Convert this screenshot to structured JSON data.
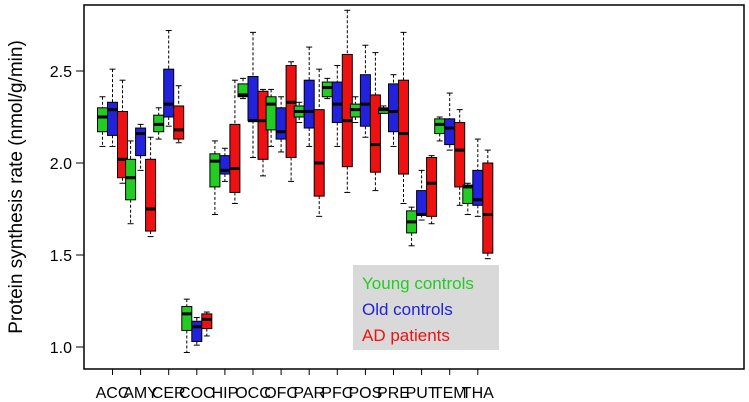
{
  "chart_data": {
    "type": "box",
    "ylabel": "Protein synthesis rate (nmol/g/min)",
    "ylim": [
      0.9,
      2.9
    ],
    "yticks": [
      1.0,
      1.5,
      2.0,
      2.5
    ],
    "grid": false,
    "legend_position": "bottom-center",
    "categories": [
      "ACC",
      "AMY",
      "CER",
      "COC",
      "HIP",
      "OCC",
      "OFC",
      "PAR",
      "PFC",
      "POS",
      "PRE",
      "PUT",
      "TEM",
      "THA"
    ],
    "colors": {
      "young": "#22cc22",
      "old": "#2222dd",
      "ad": "#ee1111"
    },
    "series": [
      {
        "name": "Young controls",
        "key": "young",
        "boxes": [
          {
            "min": 2.09,
            "q1": 2.17,
            "median": 2.25,
            "q3": 2.3,
            "max": 2.36
          },
          {
            "min": 1.67,
            "q1": 1.8,
            "median": 1.92,
            "q3": 2.02,
            "max": 2.12
          },
          {
            "min": 2.13,
            "q1": 2.17,
            "median": 2.21,
            "q3": 2.26,
            "max": 2.3
          },
          {
            "min": 0.97,
            "q1": 1.09,
            "median": 1.18,
            "q3": 1.22,
            "max": 1.26
          },
          {
            "min": 1.72,
            "q1": 1.87,
            "median": 2.01,
            "q3": 2.05,
            "max": 2.12
          },
          {
            "min": 2.35,
            "q1": 2.36,
            "median": 2.37,
            "q3": 2.43,
            "max": 2.46
          },
          {
            "min": 2.09,
            "q1": 2.18,
            "median": 2.32,
            "q3": 2.36,
            "max": 2.4
          },
          {
            "min": 2.22,
            "q1": 2.25,
            "median": 2.28,
            "q3": 2.31,
            "max": 2.33
          },
          {
            "min": 2.35,
            "q1": 2.36,
            "median": 2.41,
            "q3": 2.44,
            "max": 2.46
          },
          {
            "min": 2.22,
            "q1": 2.25,
            "median": 2.29,
            "q3": 2.32,
            "max": 2.36
          },
          {
            "min": 2.27,
            "q1": 2.27,
            "median": 2.29,
            "q3": 2.3,
            "max": 2.31
          },
          {
            "min": 1.55,
            "q1": 1.62,
            "median": 1.68,
            "q3": 1.74,
            "max": 1.76
          },
          {
            "min": 2.12,
            "q1": 2.16,
            "median": 2.21,
            "q3": 2.24,
            "max": 2.25
          },
          {
            "min": 1.72,
            "q1": 1.78,
            "median": 1.87,
            "q3": 1.88,
            "max": 1.89
          }
        ]
      },
      {
        "name": "Old controls",
        "key": "old",
        "boxes": [
          {
            "min": 2.09,
            "q1": 2.15,
            "median": 2.29,
            "q3": 2.33,
            "max": 2.51
          },
          {
            "min": 1.96,
            "q1": 2.04,
            "median": 2.16,
            "q3": 2.19,
            "max": 2.21
          },
          {
            "min": 2.2,
            "q1": 2.25,
            "median": 2.32,
            "q3": 2.51,
            "max": 2.72
          },
          {
            "min": 1.01,
            "q1": 1.03,
            "median": 1.11,
            "q3": 1.14,
            "max": 1.16
          },
          {
            "min": 1.9,
            "q1": 1.94,
            "median": 1.96,
            "q3": 2.04,
            "max": 2.08
          },
          {
            "min": 2.03,
            "q1": 2.23,
            "median": 2.23,
            "q3": 2.47,
            "max": 2.71
          },
          {
            "min": 2.06,
            "q1": 2.13,
            "median": 2.17,
            "q3": 2.3,
            "max": 2.36
          },
          {
            "min": 2.09,
            "q1": 2.19,
            "median": 2.28,
            "q3": 2.45,
            "max": 2.63
          },
          {
            "min": 2.09,
            "q1": 2.22,
            "median": 2.32,
            "q3": 2.44,
            "max": 2.53
          },
          {
            "min": 2.14,
            "q1": 2.2,
            "median": 2.32,
            "q3": 2.48,
            "max": 2.64
          },
          {
            "min": 2.09,
            "q1": 2.17,
            "median": 2.28,
            "q3": 2.43,
            "max": 2.48
          },
          {
            "min": 1.69,
            "q1": 1.72,
            "median": 1.72,
            "q3": 1.85,
            "max": 1.96
          },
          {
            "min": 2.07,
            "q1": 2.1,
            "median": 2.19,
            "q3": 2.24,
            "max": 2.38
          },
          {
            "min": 1.71,
            "q1": 1.77,
            "median": 1.8,
            "q3": 1.96,
            "max": 2.13
          }
        ]
      },
      {
        "name": "AD patients",
        "key": "ad",
        "boxes": [
          {
            "min": 1.89,
            "q1": 1.92,
            "median": 2.02,
            "q3": 2.28,
            "max": 2.45
          },
          {
            "min": 1.6,
            "q1": 1.63,
            "median": 1.75,
            "q3": 2.02,
            "max": 2.14
          },
          {
            "min": 2.11,
            "q1": 2.13,
            "median": 2.18,
            "q3": 2.31,
            "max": 2.42
          },
          {
            "min": 1.06,
            "q1": 1.1,
            "median": 1.15,
            "q3": 1.18,
            "max": 1.19
          },
          {
            "min": 1.78,
            "q1": 1.84,
            "median": 1.97,
            "q3": 2.21,
            "max": 2.45
          },
          {
            "min": 1.93,
            "q1": 2.02,
            "median": 2.23,
            "q3": 2.39,
            "max": 2.4
          },
          {
            "min": 1.9,
            "q1": 2.03,
            "median": 2.33,
            "q3": 2.53,
            "max": 2.55
          },
          {
            "min": 1.71,
            "q1": 1.82,
            "median": 2.0,
            "q3": 2.29,
            "max": 2.51
          },
          {
            "min": 1.84,
            "q1": 1.98,
            "median": 2.23,
            "q3": 2.59,
            "max": 2.83
          },
          {
            "min": 1.85,
            "q1": 1.95,
            "median": 2.1,
            "q3": 2.37,
            "max": 2.6
          },
          {
            "min": 1.78,
            "q1": 1.94,
            "median": 2.16,
            "q3": 2.45,
            "max": 2.71
          },
          {
            "min": 1.67,
            "q1": 1.71,
            "median": 1.89,
            "q3": 2.03,
            "max": 2.04
          },
          {
            "min": 1.77,
            "q1": 1.87,
            "median": 2.07,
            "q3": 2.22,
            "max": 2.29
          },
          {
            "min": 1.48,
            "q1": 1.51,
            "median": 1.72,
            "q3": 2.0,
            "max": 2.07
          }
        ]
      }
    ],
    "legend": {
      "entries": [
        "Young controls",
        "Old controls",
        "AD patients"
      ],
      "background": "#d9d9d9"
    }
  }
}
